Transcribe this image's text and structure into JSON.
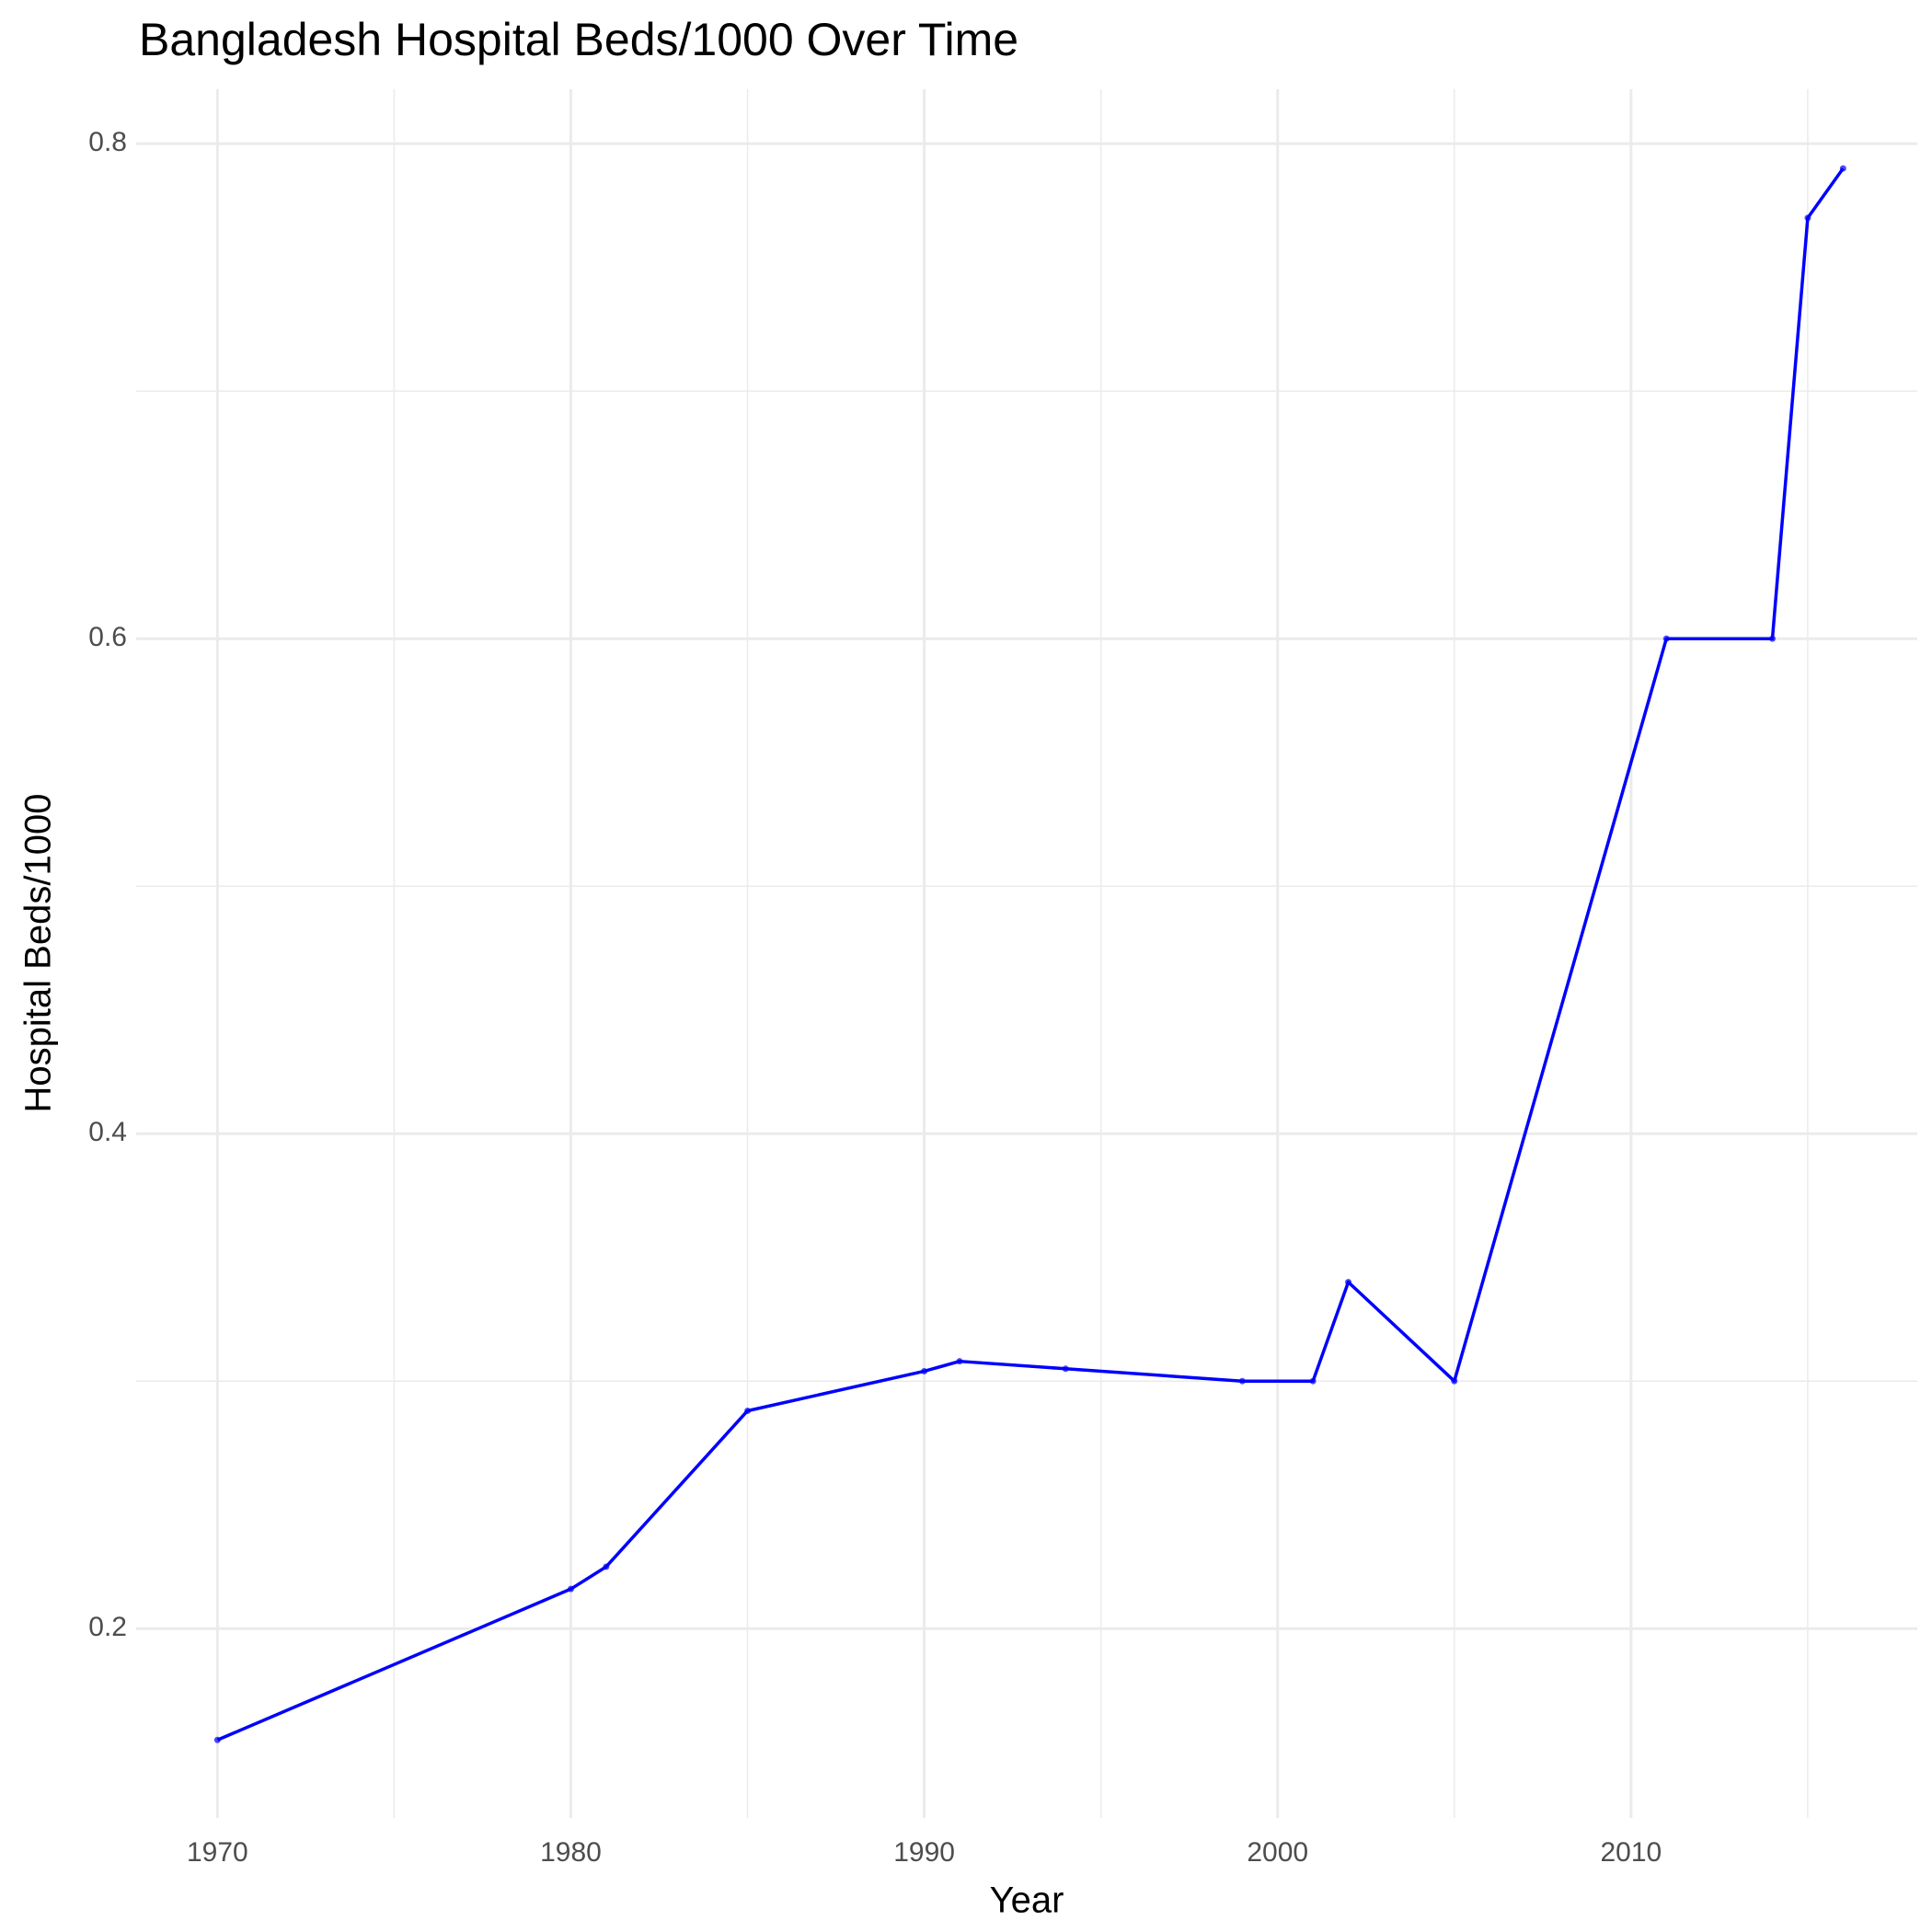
{
  "chart_data": {
    "type": "line",
    "title": "Bangladesh Hospital Beds/1000 Over Time",
    "x_label": "Year",
    "y_label": "Hospital Beds/1000",
    "x": [
      1970,
      1980,
      1981,
      1985,
      1990,
      1991,
      1994,
      1999,
      2001,
      2002,
      2005,
      2011,
      2014,
      2015,
      2016
    ],
    "series": [
      {
        "name": "Hospital Beds/1000",
        "color": "#0000ff",
        "values": [
          0.155,
          0.216,
          0.225,
          0.288,
          0.304,
          0.308,
          0.305,
          0.3,
          0.3,
          0.34,
          0.3,
          0.6,
          0.6,
          0.77,
          0.79
        ]
      }
    ],
    "xlim": [
      1967.7,
      2018.1
    ],
    "ylim": [
      0.1235,
      0.822
    ],
    "xticks": [
      1970,
      1980,
      1990,
      2000,
      2010
    ],
    "yticks": [
      0.2,
      0.4,
      0.6,
      0.8
    ],
    "minor_xticks": [
      1975,
      1985,
      1995,
      2005,
      2015
    ],
    "minor_yticks": [
      0.3,
      0.5,
      0.7
    ],
    "grid": true
  }
}
